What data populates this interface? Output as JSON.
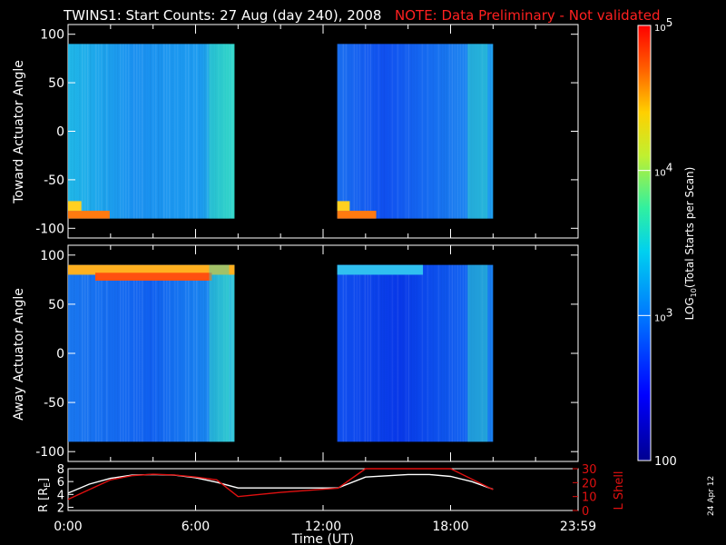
{
  "title": "TWINS1: Start Counts: 27 Aug (day 240), 2008",
  "note": "NOTE: Data Preliminary - Not validated",
  "date_stamp": "24 Apr 12",
  "colors": {
    "background": "#000000",
    "axes": "#ffffff",
    "note": "#ff2020",
    "r_line": "#ffffff",
    "lshell_line": "#e01010"
  },
  "chart_data": [
    {
      "type": "heatmap",
      "ylabel": "Toward Actuator Angle",
      "ylim": [
        -110,
        110
      ],
      "y_ticks": [
        "100",
        "50",
        "0",
        "-50",
        "-100"
      ],
      "x_range_hours": [
        0,
        24
      ],
      "data_blocks": [
        {
          "start": "00:00",
          "end": "07:50"
        },
        {
          "start": "12:40",
          "end": "20:00"
        }
      ],
      "colorscale": "log10 counts, 100 to 10^5"
    },
    {
      "type": "heatmap",
      "ylabel": "Away Actuator Angle",
      "ylim": [
        -110,
        110
      ],
      "y_ticks": [
        "100",
        "50",
        "0",
        "-50",
        "-100"
      ],
      "x_range_hours": [
        0,
        24
      ],
      "data_blocks": [
        {
          "start": "00:00",
          "end": "07:50"
        },
        {
          "start": "12:40",
          "end": "20:00"
        }
      ],
      "colorscale": "log10 counts, 100 to 10^5"
    },
    {
      "type": "line",
      "xlabel": "Time (UT)",
      "x_ticks": [
        "0:00",
        "6:00",
        "12:00",
        "18:00",
        "23:59"
      ],
      "left_axis": {
        "label": "R [R",
        "label_sub": "E",
        "label_end": "]",
        "ylim": [
          1.5,
          8
        ],
        "ticks": [
          "8",
          "6",
          "4",
          "2"
        ]
      },
      "right_axis": {
        "label": "L Shell",
        "ylim": [
          0,
          30
        ],
        "ticks": [
          "30",
          "20",
          "10",
          "0"
        ]
      },
      "series": [
        {
          "name": "R",
          "axis": "left",
          "color": "#ffffff",
          "x": [
            0,
            1,
            2,
            3,
            4,
            5,
            6,
            7,
            8,
            9,
            10,
            11,
            12,
            12.7,
            14,
            16,
            17,
            18,
            19,
            20
          ],
          "y": [
            4.2,
            5.6,
            6.5,
            7.0,
            7.1,
            7.0,
            6.6,
            5.9,
            5.0,
            5.0,
            5.0,
            5.0,
            5.0,
            5.0,
            6.7,
            7.1,
            7.1,
            6.8,
            6.0,
            4.8
          ]
        },
        {
          "name": "L Shell",
          "axis": "right",
          "color": "#e01010",
          "x": [
            0,
            1,
            2,
            3,
            4,
            5,
            6,
            7,
            8,
            10,
            12.7,
            14,
            18,
            20
          ],
          "y": [
            8,
            15,
            22,
            25,
            26,
            25.5,
            24,
            22,
            10,
            13,
            16,
            31,
            31,
            15
          ]
        }
      ]
    }
  ],
  "colorbar": {
    "label_prefix": "LOG",
    "label_sub": "10",
    "label_suffix": "(Total Starts per Scan)",
    "ticks": [
      {
        "base": "10",
        "exp": "5",
        "value": 100000
      },
      {
        "base": "10",
        "exp": "4",
        "value": 10000
      },
      {
        "base": "10",
        "exp": "3",
        "value": 1000
      },
      {
        "base": "100",
        "exp": "",
        "value": 100
      }
    ]
  }
}
